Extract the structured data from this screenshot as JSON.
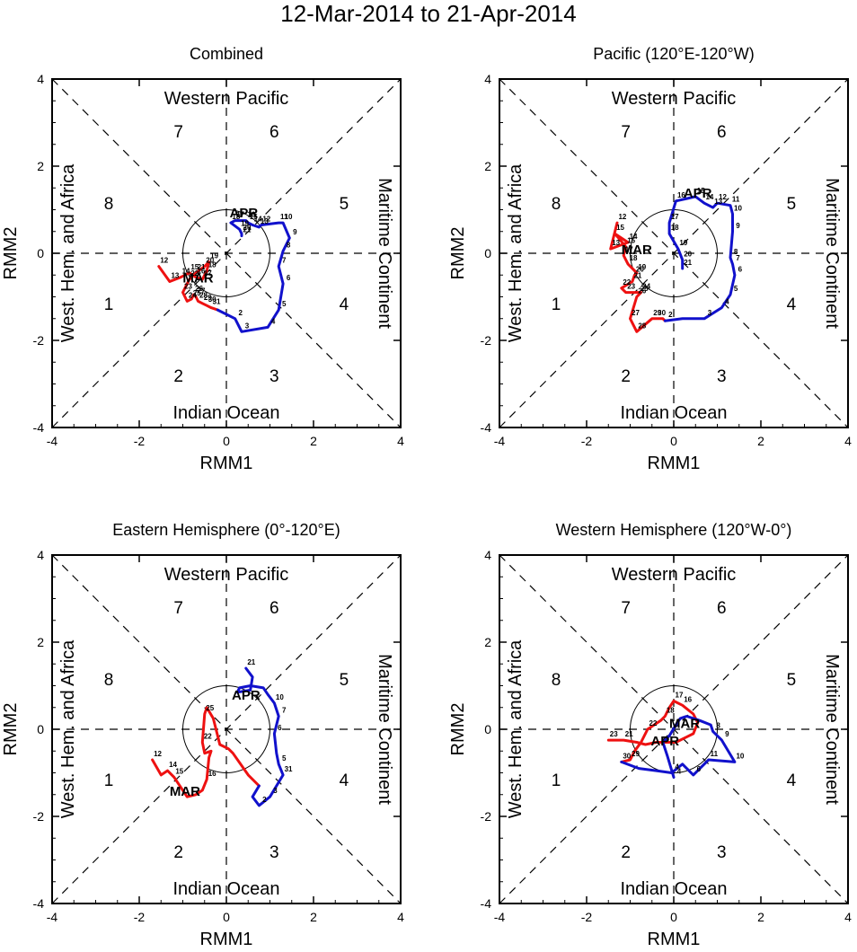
{
  "title": "12-Mar-2014 to 21-Apr-2014",
  "colors": {
    "march": "#ee1111",
    "april": "#1111cc",
    "axis": "#000000"
  },
  "chart_data": [
    {
      "type": "line",
      "title": "Combined",
      "xlabel": "RMM1",
      "ylabel": "RMM2",
      "xlim": [
        -4,
        4
      ],
      "ylim": [
        -4,
        4
      ],
      "ticks": [
        "-4",
        "-2",
        "0",
        "2",
        "4"
      ],
      "regions": {
        "top": "Western Pacific",
        "bottom": "Indian Ocean",
        "left": "West. Hem. and Africa",
        "right": "Maritime Continent"
      },
      "phases": [
        "1",
        "2",
        "3",
        "4",
        "5",
        "6",
        "7",
        "8"
      ],
      "month_labels": [
        {
          "text": "MAR",
          "x": -0.65,
          "y": -0.55,
          "series": "march"
        },
        {
          "text": "APR",
          "x": 0.4,
          "y": 0.95,
          "series": "april"
        }
      ],
      "series": [
        {
          "name": "march",
          "color": "#ee1111",
          "x": [
            -1.55,
            -1.3,
            -1.05,
            -0.85,
            -0.7,
            -0.55,
            -0.45,
            -0.4,
            -0.5,
            -0.7,
            -0.85,
            -1.0,
            -0.9,
            -0.8,
            -0.75,
            -0.7,
            -0.65,
            -0.55,
            -0.45,
            -0.35,
            -0.2
          ],
          "y": [
            -0.3,
            -0.65,
            -0.55,
            -0.45,
            -0.55,
            -0.6,
            -0.4,
            -0.2,
            -0.3,
            -0.45,
            -0.6,
            -0.9,
            -1.1,
            -1.05,
            -0.95,
            -1.0,
            -1.1,
            -1.15,
            -1.2,
            -1.25,
            -1.3
          ],
          "labels": [
            "12",
            "13",
            "14",
            "15",
            "16",
            "17",
            "18",
            "19",
            "20",
            "21",
            "22",
            "23",
            "24",
            "25",
            "26",
            "27",
            "28",
            "29",
            "30",
            "31",
            ""
          ]
        },
        {
          "name": "april",
          "color": "#1111cc",
          "x": [
            -0.2,
            0.2,
            0.35,
            0.95,
            1.2,
            1.3,
            1.2,
            1.3,
            1.45,
            1.3,
            1.2,
            0.8,
            0.75,
            0.6,
            0.5,
            0.45,
            0.2,
            0.1,
            0.3,
            0.35,
            0.35
          ],
          "y": [
            -1.3,
            -1.5,
            -1.8,
            -1.7,
            -1.3,
            -0.7,
            -0.3,
            0.05,
            0.35,
            0.7,
            0.7,
            0.65,
            0.6,
            0.65,
            0.7,
            0.75,
            0.75,
            0.7,
            0.55,
            0.45,
            0.4
          ],
          "labels": [
            "",
            "2",
            "3",
            "4",
            "5",
            "6",
            "7",
            "8",
            "9",
            "10",
            "11",
            "12",
            "13",
            "14",
            "15",
            "16",
            "17",
            "18",
            "19",
            "20",
            "21"
          ]
        }
      ]
    },
    {
      "type": "line",
      "title": "Pacific (120°E-120°W)",
      "xlabel": "RMM1",
      "ylabel": "RMM2",
      "xlim": [
        -4,
        4
      ],
      "ylim": [
        -4,
        4
      ],
      "ticks": [
        "-4",
        "-2",
        "0",
        "2",
        "4"
      ],
      "regions": {
        "top": "Western Pacific",
        "bottom": "Indian Ocean",
        "left": "West. Hem. and Africa",
        "right": "Maritime Continent"
      },
      "phases": [
        "1",
        "2",
        "3",
        "4",
        "5",
        "6",
        "7",
        "8"
      ],
      "month_labels": [
        {
          "text": "MAR",
          "x": -0.85,
          "y": 0.1,
          "series": "march"
        },
        {
          "text": "APR",
          "x": 0.55,
          "y": 1.4,
          "series": "april"
        }
      ],
      "series": [
        {
          "name": "march",
          "color": "#ee1111",
          "x": [
            -1.3,
            -1.45,
            -1.05,
            -1.35,
            -1.1,
            -1.15,
            -1.05,
            -0.85,
            -0.9,
            -0.95,
            -1.2,
            -1.1,
            -0.75,
            -0.8,
            -0.85,
            -1.0,
            -0.85,
            -0.5,
            -0.4,
            -0.25,
            -0.2
          ],
          "y": [
            0.7,
            0.1,
            0.25,
            0.45,
            0.15,
            -0.05,
            -0.25,
            -0.45,
            -0.5,
            -0.65,
            -0.8,
            -0.9,
            -0.9,
            -0.95,
            -1.0,
            -1.5,
            -1.8,
            -1.5,
            -1.5,
            -1.5,
            -1.55
          ],
          "labels": [
            "12",
            "13",
            "14",
            "15",
            "16",
            "17",
            "18",
            "19",
            "20",
            "21",
            "22",
            "23",
            "24",
            "25",
            "26",
            "27",
            "28",
            "29",
            "30",
            "",
            "2"
          ]
        },
        {
          "name": "april",
          "color": "#1111cc",
          "x": [
            -0.2,
            0.2,
            0.7,
            1.1,
            1.3,
            1.4,
            1.35,
            1.3,
            1.35,
            1.35,
            1.3,
            1.0,
            0.9,
            0.7,
            0.5,
            0.05,
            -0.1,
            -0.1,
            0.1,
            0.2,
            0.2
          ],
          "y": [
            -1.55,
            -1.5,
            -1.5,
            -1.25,
            -0.95,
            -0.5,
            -0.25,
            -0.1,
            0.5,
            0.9,
            1.1,
            1.15,
            1.05,
            1.15,
            1.3,
            1.2,
            0.7,
            0.45,
            0.1,
            -0.15,
            -0.35
          ],
          "labels": [
            "",
            "",
            "3",
            "4",
            "5",
            "6",
            "7",
            "8",
            "9",
            "10",
            "11",
            "12",
            "13",
            "14",
            "15",
            "16",
            "17",
            "18",
            "19",
            "20",
            "21"
          ]
        }
      ]
    },
    {
      "type": "line",
      "title": "Eastern Hemisphere (0°-120°E)",
      "xlabel": "RMM1",
      "ylabel": "RMM2",
      "xlim": [
        -4,
        4
      ],
      "ylim": [
        -4,
        4
      ],
      "ticks": [
        "-4",
        "-2",
        "0",
        "2",
        "4"
      ],
      "regions": {
        "top": "Western Pacific",
        "bottom": "Indian Ocean",
        "left": "West. Hem. and Africa",
        "right": "Maritime Continent"
      },
      "phases": [
        "1",
        "2",
        "3",
        "4",
        "5",
        "6",
        "7",
        "8"
      ],
      "month_labels": [
        {
          "text": "MAR",
          "x": -0.95,
          "y": -1.4,
          "series": "march"
        },
        {
          "text": "APR",
          "x": 0.45,
          "y": 0.8,
          "series": "april"
        }
      ],
      "series": [
        {
          "name": "march",
          "color": "#ee1111",
          "x": [
            -1.7,
            -1.5,
            -1.35,
            -1.2,
            -0.9,
            -0.7,
            -0.55,
            -0.45,
            -0.4,
            -0.35,
            -0.5,
            -0.55,
            -0.5,
            -0.45,
            -0.3,
            -0.2,
            -0.15,
            0.05,
            0.15,
            0.5,
            0.75
          ],
          "y": [
            -0.7,
            -1.05,
            -0.95,
            -1.1,
            -1.55,
            -1.5,
            -1.4,
            -1.15,
            -0.65,
            -0.5,
            -0.55,
            -0.3,
            0.35,
            0.5,
            0.25,
            -0.15,
            -0.35,
            -0.45,
            -0.55,
            -1.05,
            -1.3
          ],
          "labels": [
            "12",
            "",
            "14",
            "15",
            "",
            "",
            "",
            "16",
            "",
            "",
            "",
            "22",
            "25",
            "",
            "",
            "",
            "",
            "",
            "",
            "",
            ""
          ]
        },
        {
          "name": "april",
          "color": "#1111cc",
          "x": [
            0.75,
            0.6,
            0.75,
            1.0,
            1.3,
            1.2,
            1.15,
            1.1,
            1.2,
            1.1,
            0.95,
            0.85,
            0.55,
            0.3,
            0.25,
            0.55,
            0.6,
            0.45
          ],
          "y": [
            -1.3,
            -1.55,
            -1.75,
            -1.55,
            -1.05,
            -0.8,
            -0.55,
            -0.1,
            0.3,
            0.6,
            0.8,
            0.95,
            1.0,
            0.95,
            0.85,
            0.9,
            1.2,
            1.4
          ],
          "labels": [
            "",
            "",
            "2",
            "3",
            "31",
            "5",
            "",
            "6",
            "7",
            "10",
            "",
            "",
            "",
            "",
            "",
            "",
            "",
            "21"
          ]
        }
      ]
    },
    {
      "type": "line",
      "title": "Western Hemisphere (120°W-0°)",
      "xlabel": "RMM1",
      "ylabel": "RMM2",
      "xlim": [
        -4,
        4
      ],
      "ylim": [
        -4,
        4
      ],
      "ticks": [
        "-4",
        "-2",
        "0",
        "2",
        "4"
      ],
      "regions": {
        "top": "Western Pacific",
        "bottom": "Indian Ocean",
        "left": "West. Hem. and Africa",
        "right": "Maritime Continent"
      },
      "phases": [
        "1",
        "2",
        "3",
        "4",
        "5",
        "6",
        "7",
        "8"
      ],
      "month_labels": [
        {
          "text": "MAR",
          "x": 0.25,
          "y": 0.15,
          "series": "march"
        },
        {
          "text": "APR",
          "x": -0.2,
          "y": -0.25,
          "series": "april"
        }
      ],
      "series": [
        {
          "name": "march",
          "color": "#ee1111",
          "x": [
            -1.5,
            -1.15,
            -0.85,
            -0.65,
            -0.4,
            -0.15,
            0.05,
            0.25,
            0.45,
            0.55,
            0.45,
            0.2,
            0.0,
            -0.1,
            -0.2,
            -0.3,
            -0.6,
            -0.75,
            -0.9,
            -1.0,
            -1.2
          ],
          "y": [
            -0.25,
            -0.25,
            -0.3,
            -0.35,
            -0.3,
            -0.3,
            -0.3,
            -0.2,
            -0.1,
            0.15,
            0.35,
            0.55,
            0.65,
            0.5,
            0.3,
            0.2,
            0.0,
            -0.3,
            -0.5,
            -0.7,
            -0.75
          ],
          "labels": [
            "23",
            "21",
            "",
            "",
            "",
            "",
            "",
            "",
            "",
            "",
            "",
            "16",
            "17",
            "",
            "18",
            "",
            "22",
            "",
            "",
            "29",
            "30"
          ]
        },
        {
          "name": "april",
          "color": "#1111cc",
          "x": [
            -1.2,
            -0.8,
            -0.4,
            -0.05,
            0.2,
            0.45,
            0.8,
            1.4,
            1.1,
            0.9,
            0.85,
            0.6,
            0.3,
            0.15,
            0.05,
            -0.1,
            -0.25,
            -0.15,
            0.0
          ],
          "y": [
            -0.75,
            -0.9,
            -0.95,
            -1.0,
            -0.8,
            -1.05,
            -0.7,
            -0.75,
            -0.25,
            -0.05,
            0.1,
            0.2,
            0.3,
            0.25,
            0.1,
            -0.15,
            -0.3,
            -0.6,
            -1.1
          ],
          "labels": [
            "",
            "",
            "",
            "4",
            "",
            "6",
            "11",
            "10",
            "9",
            "8",
            "",
            "",
            "",
            "",
            "",
            "",
            "",
            "",
            "4"
          ]
        }
      ]
    }
  ]
}
